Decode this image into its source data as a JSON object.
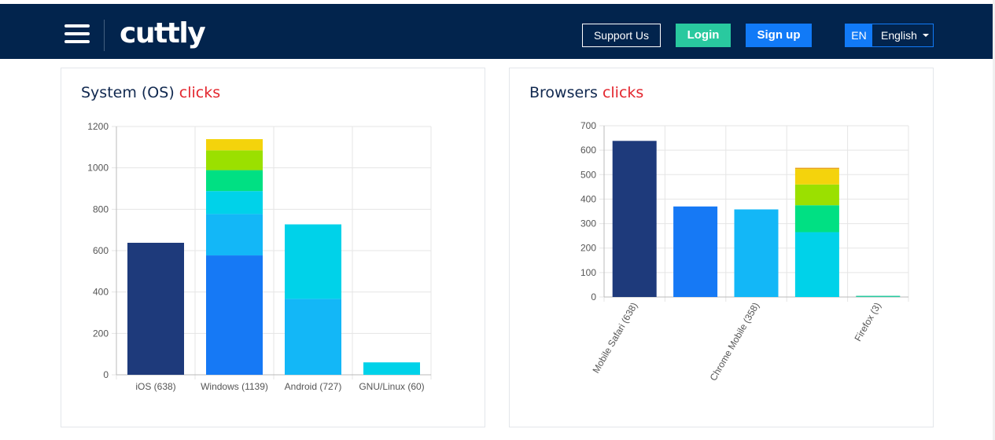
{
  "header": {
    "logo_text": "cuttly",
    "support_label": "Support Us",
    "login_label": "Login",
    "signup_label": "Sign up",
    "language_code": "EN",
    "language_name": "English",
    "colors": {
      "navbar": "#02244d",
      "login": "#29c99f",
      "signup": "#117af7"
    }
  },
  "panels": {
    "os": {
      "title_main": "System (OS)",
      "title_accent": "clicks"
    },
    "browsers": {
      "title_main": "Browsers",
      "title_accent": "clicks"
    }
  },
  "chart_data": [
    {
      "type": "bar",
      "stacked": true,
      "title": "System (OS) clicks",
      "categories": [
        "iOS (638)",
        "Windows (1139)",
        "Android (727)",
        "GNU/Linux (60)"
      ],
      "ylim": [
        0,
        1200
      ],
      "yticks": [
        0,
        200,
        400,
        600,
        800,
        1000,
        1200
      ],
      "grid": true,
      "stacks": [
        [
          {
            "value": 638,
            "color": "#1e3a7b"
          }
        ],
        [
          {
            "value": 577,
            "color": "#1679f5"
          },
          {
            "value": 200,
            "color": "#13b7f7"
          },
          {
            "value": 111,
            "color": "#00d2e9"
          },
          {
            "value": 101,
            "color": "#00e083"
          },
          {
            "value": 96,
            "color": "#9be000"
          },
          {
            "value": 54,
            "color": "#f4d30c"
          }
        ],
        [
          {
            "value": 367,
            "color": "#13b7f7"
          },
          {
            "value": 360,
            "color": "#00d2e9"
          }
        ],
        [
          {
            "value": 60,
            "color": "#00d2e9"
          }
        ]
      ]
    },
    {
      "type": "bar",
      "stacked": true,
      "title": "Browsers clicks",
      "categories": [
        "Mobile Safari (638)",
        "",
        "Chrome Mobile (358)",
        "",
        "Firefox (3)"
      ],
      "ylim": [
        0,
        700
      ],
      "yticks": [
        0,
        100,
        200,
        300,
        400,
        500,
        600,
        700
      ],
      "grid": true,
      "stacks": [
        [
          {
            "value": 638,
            "color": "#1e3a7b"
          }
        ],
        [
          {
            "value": 370,
            "color": "#1679f5"
          }
        ],
        [
          {
            "value": 358,
            "color": "#13b7f7"
          }
        ],
        [
          {
            "value": 265,
            "color": "#00d2e9"
          },
          {
            "value": 110,
            "color": "#00e083"
          },
          {
            "value": 85,
            "color": "#9be000"
          },
          {
            "value": 63,
            "color": "#f4d30c"
          },
          {
            "value": 5,
            "color": "#e8a317"
          }
        ],
        [
          {
            "value": 3,
            "color": "#29c99f"
          }
        ]
      ]
    }
  ]
}
